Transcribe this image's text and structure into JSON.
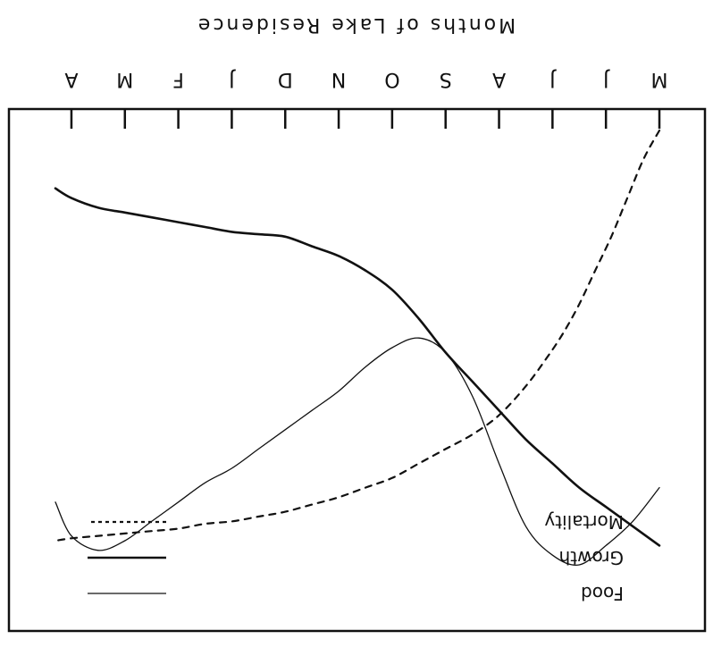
{
  "chart_data": {
    "type": "line",
    "title": "Months of Lake Residence",
    "orientation": "rotated-180",
    "xlabel": "Months of Lake Residence",
    "ylabel": "",
    "categories": [
      "M",
      "J",
      "J",
      "A",
      "S",
      "O",
      "N",
      "D",
      "J",
      "F",
      "M",
      "A"
    ],
    "grid": false,
    "legend_position": "bottom-right",
    "series": [
      {
        "name": "Food",
        "style": "thin",
        "color": "#111111",
        "points": [
          [
            0.0,
            0.26
          ],
          [
            0.5,
            0.19
          ],
          [
            1.0,
            0.14
          ],
          [
            1.5,
            0.1
          ],
          [
            2.0,
            0.12
          ],
          [
            2.5,
            0.18
          ],
          [
            3.0,
            0.31
          ],
          [
            3.5,
            0.45
          ],
          [
            4.0,
            0.54
          ],
          [
            4.5,
            0.57
          ],
          [
            5.0,
            0.55
          ],
          [
            5.5,
            0.51
          ],
          [
            6.0,
            0.46
          ],
          [
            6.5,
            0.42
          ],
          [
            7.0,
            0.38
          ],
          [
            7.5,
            0.34
          ],
          [
            8.0,
            0.3
          ],
          [
            8.5,
            0.27
          ],
          [
            9.0,
            0.23
          ],
          [
            9.5,
            0.19
          ],
          [
            10.0,
            0.15
          ],
          [
            10.5,
            0.13
          ],
          [
            11.0,
            0.16
          ],
          [
            11.3,
            0.23
          ]
        ]
      },
      {
        "name": "Growth",
        "style": "thick",
        "color": "#111111",
        "points": [
          [
            0.0,
            0.14
          ],
          [
            0.5,
            0.18
          ],
          [
            1.0,
            0.22
          ],
          [
            1.5,
            0.26
          ],
          [
            2.0,
            0.31
          ],
          [
            2.5,
            0.36
          ],
          [
            3.0,
            0.42
          ],
          [
            3.5,
            0.48
          ],
          [
            4.0,
            0.54
          ],
          [
            4.5,
            0.61
          ],
          [
            5.0,
            0.67
          ],
          [
            5.5,
            0.71
          ],
          [
            6.0,
            0.74
          ],
          [
            6.5,
            0.76
          ],
          [
            7.0,
            0.78
          ],
          [
            7.5,
            0.785
          ],
          [
            8.0,
            0.79
          ],
          [
            8.5,
            0.8
          ],
          [
            9.0,
            0.81
          ],
          [
            9.5,
            0.82
          ],
          [
            10.0,
            0.83
          ],
          [
            10.5,
            0.84
          ],
          [
            11.0,
            0.86
          ],
          [
            11.3,
            0.88
          ]
        ]
      },
      {
        "name": "Mortality",
        "style": "dashed",
        "color": "#111111",
        "points": [
          [
            0.0,
            1.0
          ],
          [
            0.3,
            0.94
          ],
          [
            0.6,
            0.86
          ],
          [
            0.9,
            0.78
          ],
          [
            1.2,
            0.71
          ],
          [
            1.5,
            0.64
          ],
          [
            1.8,
            0.58
          ],
          [
            2.1,
            0.53
          ],
          [
            2.5,
            0.47
          ],
          [
            3.0,
            0.41
          ],
          [
            3.5,
            0.37
          ],
          [
            4.0,
            0.34
          ],
          [
            4.5,
            0.31
          ],
          [
            5.0,
            0.28
          ],
          [
            5.5,
            0.26
          ],
          [
            6.0,
            0.24
          ],
          [
            6.5,
            0.225
          ],
          [
            7.0,
            0.21
          ],
          [
            7.5,
            0.2
          ],
          [
            8.0,
            0.19
          ],
          [
            8.5,
            0.185
          ],
          [
            9.0,
            0.175
          ],
          [
            9.5,
            0.17
          ],
          [
            10.0,
            0.165
          ],
          [
            10.5,
            0.16
          ],
          [
            11.0,
            0.155
          ],
          [
            11.3,
            0.15
          ]
        ]
      }
    ],
    "legend": [
      {
        "label": "Food",
        "style": "thin"
      },
      {
        "label": "Growth",
        "style": "thick"
      },
      {
        "label": "Mortality",
        "style": "dashed"
      }
    ]
  }
}
